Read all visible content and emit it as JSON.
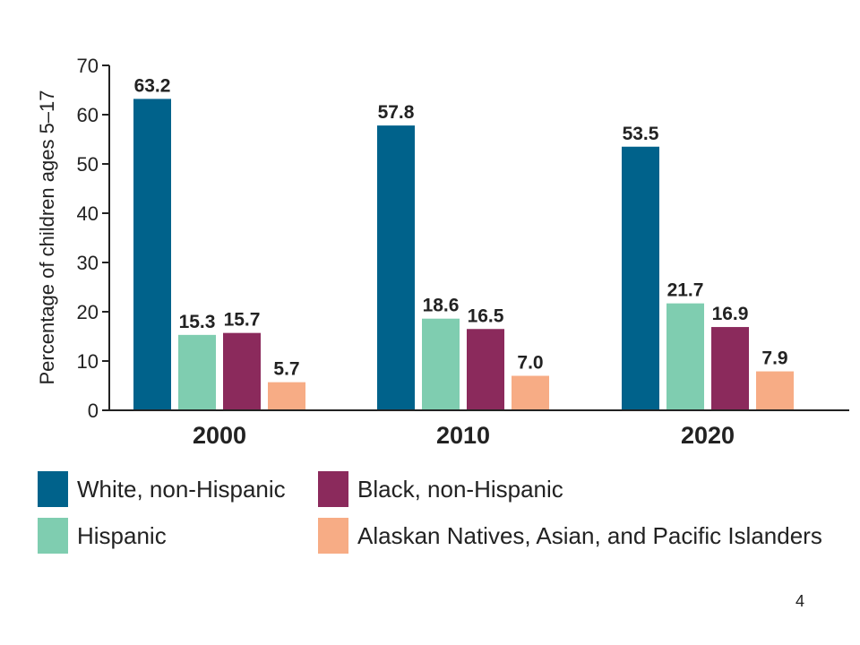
{
  "chart_data": {
    "type": "bar",
    "categories": [
      "2000",
      "2010",
      "2020"
    ],
    "series": [
      {
        "name": "White, non-Hispanic",
        "values": [
          63.2,
          57.8,
          53.5
        ],
        "color": "#00628b"
      },
      {
        "name": "Hispanic",
        "values": [
          15.3,
          18.6,
          21.7
        ],
        "color": "#7fcdb0"
      },
      {
        "name": "Black, non-Hispanic",
        "values": [
          15.7,
          16.5,
          16.9
        ],
        "color": "#8b2a5c"
      },
      {
        "name": "Alaskan Natives, Asian, and Pacific Islanders",
        "values": [
          5.7,
          7.0,
          7.9
        ],
        "color": "#f7ac85"
      }
    ],
    "data_labels": [
      [
        "63.2",
        "57.8",
        "53.5"
      ],
      [
        "15.3",
        "18.6",
        "21.7"
      ],
      [
        "15.7",
        "16.5",
        "16.9"
      ],
      [
        "5.7",
        "7.0",
        "7.9"
      ]
    ],
    "ylabel": "Percentage of children ages 5–17",
    "xlabel": "",
    "ylim": [
      0,
      70
    ],
    "yticks": [
      "0",
      "10",
      "20",
      "30",
      "40",
      "50",
      "60",
      "70"
    ],
    "grid": false,
    "legend_position": "bottom"
  },
  "page_number": "4"
}
